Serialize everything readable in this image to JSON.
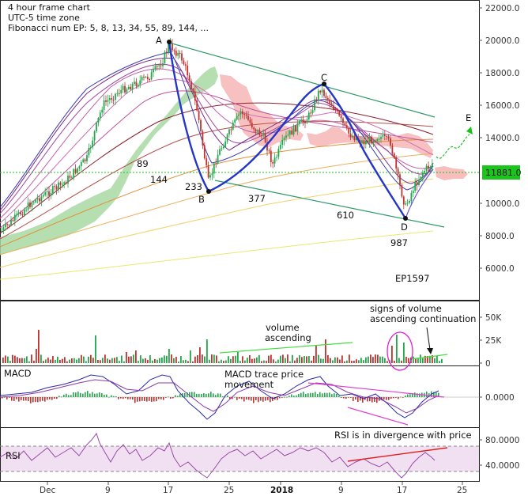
{
  "chart_data": [
    {
      "type": "candlestick",
      "info_lines": [
        "4 hour frame chart",
        "UTC-5 time zone",
        "Fibonacci num EP: 5, 8, 13, 34, 55, 89, 144, ..."
      ],
      "y_ticks": [
        "22000.0",
        "20000.0",
        "18000.0",
        "16000.0",
        "14000.0",
        "12000.0",
        "10000.0",
        "8000.0",
        "6000.0"
      ],
      "ylim": [
        4000,
        22500
      ],
      "x_ticks": [
        "Dec",
        "9",
        "17",
        "25",
        "2018",
        "9",
        "17",
        "25"
      ],
      "last_price": "11881.0",
      "current_price_line": 11881,
      "wave_points": [
        {
          "label": "A",
          "value": 19850
        },
        {
          "label": "B",
          "value": 10650
        },
        {
          "label": "C",
          "value": 17200
        },
        {
          "label": "D",
          "value": 9100
        },
        {
          "label": "E",
          "value": 15200
        }
      ],
      "fib_labels": [
        "89",
        "144",
        "233",
        "377",
        "610",
        "987",
        "EP1597"
      ]
    },
    {
      "type": "bar",
      "panel": "volume",
      "y_ticks": [
        "50K",
        "25K",
        "0"
      ],
      "annotations": [
        "volume",
        "ascending",
        "signs of volume",
        "ascending continuation"
      ]
    },
    {
      "type": "line",
      "panel": "MACD",
      "label": "MACD",
      "y_ticks": [
        "0.0000"
      ],
      "annotations": [
        "MACD trace price",
        "movement"
      ]
    },
    {
      "type": "line",
      "panel": "RSI",
      "label": "RSI",
      "y_ticks": [
        "80.0000",
        "40.0000"
      ],
      "annotations": [
        "RSI is in divergence with price"
      ]
    }
  ],
  "colors": {
    "wave": "#2336c8",
    "channel": "#2e9a6a",
    "bull": "#22a84a",
    "bear": "#c0322f",
    "price_tag": "#1ec41e",
    "cloud_green": "#a9d9a3",
    "cloud_red": "#f7b6b6",
    "rsi_band": "#f1e0f2",
    "rsi_line": "#9b4aa8",
    "divergence": "#e02020",
    "macd_channel": "#e040d0",
    "forecast": "#18c018"
  }
}
